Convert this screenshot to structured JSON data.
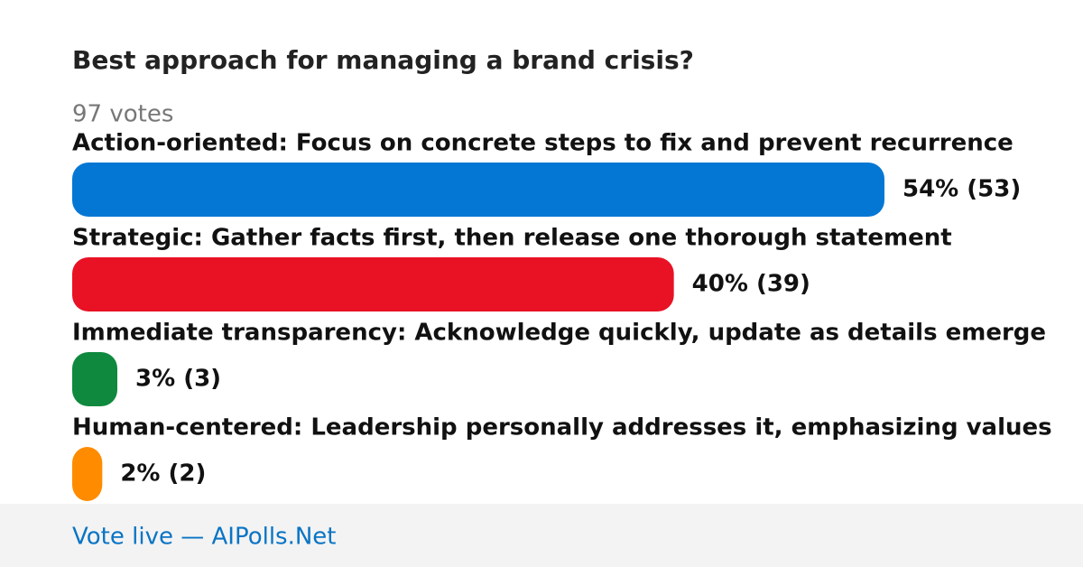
{
  "poll": {
    "question": "Best approach for managing a brand crisis?",
    "votes_label": "97 votes",
    "options": [
      {
        "label": "Action-oriented: Focus on concrete steps to fix and prevent recurrence",
        "percent": 54,
        "votes": 53,
        "value_label": "54% (53)",
        "color": "#0477d4"
      },
      {
        "label": "Strategic: Gather facts first, then release one thorough statement",
        "percent": 40,
        "votes": 39,
        "value_label": "40% (39)",
        "color": "#e81224"
      },
      {
        "label": "Immediate transparency: Acknowledge quickly, update as details emerge",
        "percent": 3,
        "votes": 3,
        "value_label": "3% (3)",
        "color": "#0f893e"
      },
      {
        "label": "Human-centered: Leadership personally addresses it, emphasizing values",
        "percent": 2,
        "votes": 2,
        "value_label": "2% (2)",
        "color": "#ff8c00"
      }
    ],
    "footer": "Vote live — AIPolls.Net"
  }
}
